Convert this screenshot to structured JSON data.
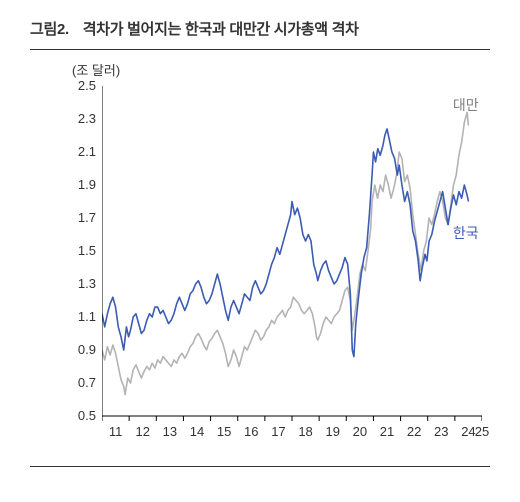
{
  "title_prefix": "그림2.",
  "title": "격차가 벌어지는 한국과 대만간 시가총액 격차",
  "ylabel": "(조 달러)",
  "chart": {
    "type": "line",
    "background_color": "#ffffff",
    "axis_color": "#000000",
    "ylim": [
      0.5,
      2.5
    ],
    "yticks": [
      0.5,
      0.7,
      0.9,
      1.1,
      1.3,
      1.5,
      1.7,
      1.9,
      2.1,
      2.3,
      2.5
    ],
    "xlim": [
      2011,
      2025
    ],
    "xticks": [
      11,
      12,
      13,
      14,
      15,
      16,
      17,
      18,
      19,
      20,
      21,
      22,
      23,
      24,
      25
    ],
    "tick_fontsize": 13,
    "title_fontsize": 15,
    "line_width": 1.6,
    "series": [
      {
        "name": "대만",
        "label": "대만",
        "color": "#b3b3b3",
        "annot": {
          "x": 2024.0,
          "y": 2.4,
          "color": "#808080"
        },
        "data": [
          [
            2011.0,
            0.9
          ],
          [
            2011.1,
            0.84
          ],
          [
            2011.2,
            0.92
          ],
          [
            2011.3,
            0.87
          ],
          [
            2011.4,
            0.93
          ],
          [
            2011.5,
            0.88
          ],
          [
            2011.6,
            0.8
          ],
          [
            2011.7,
            0.72
          ],
          [
            2011.8,
            0.68
          ],
          [
            2011.85,
            0.63
          ],
          [
            2011.95,
            0.73
          ],
          [
            2012.05,
            0.7
          ],
          [
            2012.15,
            0.78
          ],
          [
            2012.25,
            0.81
          ],
          [
            2012.35,
            0.77
          ],
          [
            2012.45,
            0.73
          ],
          [
            2012.55,
            0.77
          ],
          [
            2012.65,
            0.8
          ],
          [
            2012.75,
            0.78
          ],
          [
            2012.85,
            0.82
          ],
          [
            2012.95,
            0.79
          ],
          [
            2013.05,
            0.84
          ],
          [
            2013.15,
            0.82
          ],
          [
            2013.25,
            0.86
          ],
          [
            2013.35,
            0.84
          ],
          [
            2013.45,
            0.82
          ],
          [
            2013.55,
            0.8
          ],
          [
            2013.65,
            0.84
          ],
          [
            2013.75,
            0.82
          ],
          [
            2013.85,
            0.86
          ],
          [
            2013.95,
            0.88
          ],
          [
            2014.05,
            0.85
          ],
          [
            2014.15,
            0.88
          ],
          [
            2014.25,
            0.92
          ],
          [
            2014.35,
            0.94
          ],
          [
            2014.45,
            0.98
          ],
          [
            2014.55,
            1.0
          ],
          [
            2014.65,
            0.97
          ],
          [
            2014.75,
            0.93
          ],
          [
            2014.85,
            0.9
          ],
          [
            2014.95,
            0.95
          ],
          [
            2015.05,
            0.97
          ],
          [
            2015.15,
            1.0
          ],
          [
            2015.25,
            1.02
          ],
          [
            2015.35,
            0.98
          ],
          [
            2015.45,
            0.94
          ],
          [
            2015.55,
            0.88
          ],
          [
            2015.65,
            0.8
          ],
          [
            2015.75,
            0.84
          ],
          [
            2015.85,
            0.9
          ],
          [
            2015.95,
            0.86
          ],
          [
            2016.05,
            0.8
          ],
          [
            2016.15,
            0.86
          ],
          [
            2016.25,
            0.92
          ],
          [
            2016.35,
            0.9
          ],
          [
            2016.45,
            0.94
          ],
          [
            2016.55,
            0.98
          ],
          [
            2016.65,
            1.02
          ],
          [
            2016.75,
            1.0
          ],
          [
            2016.85,
            0.96
          ],
          [
            2016.95,
            0.98
          ],
          [
            2017.05,
            1.02
          ],
          [
            2017.15,
            1.04
          ],
          [
            2017.25,
            1.08
          ],
          [
            2017.35,
            1.06
          ],
          [
            2017.45,
            1.1
          ],
          [
            2017.55,
            1.12
          ],
          [
            2017.65,
            1.14
          ],
          [
            2017.75,
            1.1
          ],
          [
            2017.85,
            1.14
          ],
          [
            2017.95,
            1.16
          ],
          [
            2018.05,
            1.22
          ],
          [
            2018.15,
            1.2
          ],
          [
            2018.25,
            1.18
          ],
          [
            2018.35,
            1.14
          ],
          [
            2018.45,
            1.12
          ],
          [
            2018.55,
            1.14
          ],
          [
            2018.65,
            1.16
          ],
          [
            2018.75,
            1.12
          ],
          [
            2018.85,
            1.04
          ],
          [
            2018.9,
            0.98
          ],
          [
            2018.95,
            0.96
          ],
          [
            2019.05,
            1.0
          ],
          [
            2019.15,
            1.06
          ],
          [
            2019.25,
            1.1
          ],
          [
            2019.35,
            1.08
          ],
          [
            2019.45,
            1.06
          ],
          [
            2019.55,
            1.1
          ],
          [
            2019.65,
            1.12
          ],
          [
            2019.75,
            1.14
          ],
          [
            2019.85,
            1.2
          ],
          [
            2019.95,
            1.26
          ],
          [
            2020.05,
            1.28
          ],
          [
            2020.15,
            1.2
          ],
          [
            2020.22,
            1.02
          ],
          [
            2020.3,
            1.1
          ],
          [
            2020.4,
            1.22
          ],
          [
            2020.5,
            1.36
          ],
          [
            2020.6,
            1.42
          ],
          [
            2020.7,
            1.38
          ],
          [
            2020.8,
            1.5
          ],
          [
            2020.9,
            1.64
          ],
          [
            2020.95,
            1.8
          ],
          [
            2021.05,
            1.9
          ],
          [
            2021.15,
            1.82
          ],
          [
            2021.25,
            1.9
          ],
          [
            2021.35,
            1.86
          ],
          [
            2021.45,
            1.96
          ],
          [
            2021.55,
            1.9
          ],
          [
            2021.65,
            1.82
          ],
          [
            2021.75,
            1.88
          ],
          [
            2021.85,
            1.96
          ],
          [
            2021.95,
            2.1
          ],
          [
            2022.05,
            2.06
          ],
          [
            2022.15,
            1.92
          ],
          [
            2022.25,
            1.96
          ],
          [
            2022.35,
            1.88
          ],
          [
            2022.45,
            1.72
          ],
          [
            2022.55,
            1.6
          ],
          [
            2022.65,
            1.48
          ],
          [
            2022.75,
            1.38
          ],
          [
            2022.85,
            1.5
          ],
          [
            2022.95,
            1.56
          ],
          [
            2023.05,
            1.7
          ],
          [
            2023.15,
            1.66
          ],
          [
            2023.25,
            1.72
          ],
          [
            2023.35,
            1.8
          ],
          [
            2023.45,
            1.86
          ],
          [
            2023.55,
            1.8
          ],
          [
            2023.65,
            1.7
          ],
          [
            2023.75,
            1.66
          ],
          [
            2023.85,
            1.78
          ],
          [
            2023.95,
            1.9
          ],
          [
            2024.05,
            1.96
          ],
          [
            2024.15,
            2.08
          ],
          [
            2024.25,
            2.16
          ],
          [
            2024.35,
            2.28
          ],
          [
            2024.45,
            2.34
          ],
          [
            2024.5,
            2.26
          ]
        ]
      },
      {
        "name": "한국",
        "label": "한국",
        "color": "#3b5bb5",
        "annot": {
          "x": 2024.0,
          "y": 1.62,
          "color": "#3b5bb5"
        },
        "data": [
          [
            2011.0,
            1.12
          ],
          [
            2011.1,
            1.04
          ],
          [
            2011.2,
            1.12
          ],
          [
            2011.3,
            1.18
          ],
          [
            2011.4,
            1.22
          ],
          [
            2011.5,
            1.16
          ],
          [
            2011.6,
            1.04
          ],
          [
            2011.7,
            0.98
          ],
          [
            2011.8,
            0.9
          ],
          [
            2011.9,
            1.04
          ],
          [
            2011.98,
            0.98
          ],
          [
            2012.05,
            1.02
          ],
          [
            2012.15,
            1.1
          ],
          [
            2012.25,
            1.12
          ],
          [
            2012.35,
            1.06
          ],
          [
            2012.45,
            1.0
          ],
          [
            2012.55,
            1.02
          ],
          [
            2012.65,
            1.08
          ],
          [
            2012.75,
            1.12
          ],
          [
            2012.85,
            1.1
          ],
          [
            2012.95,
            1.16
          ],
          [
            2013.05,
            1.16
          ],
          [
            2013.15,
            1.12
          ],
          [
            2013.25,
            1.14
          ],
          [
            2013.35,
            1.1
          ],
          [
            2013.45,
            1.06
          ],
          [
            2013.55,
            1.08
          ],
          [
            2013.65,
            1.12
          ],
          [
            2013.75,
            1.18
          ],
          [
            2013.85,
            1.22
          ],
          [
            2013.95,
            1.18
          ],
          [
            2014.05,
            1.14
          ],
          [
            2014.15,
            1.18
          ],
          [
            2014.25,
            1.24
          ],
          [
            2014.35,
            1.26
          ],
          [
            2014.45,
            1.3
          ],
          [
            2014.55,
            1.32
          ],
          [
            2014.65,
            1.28
          ],
          [
            2014.75,
            1.22
          ],
          [
            2014.85,
            1.18
          ],
          [
            2014.95,
            1.2
          ],
          [
            2015.05,
            1.24
          ],
          [
            2015.15,
            1.3
          ],
          [
            2015.25,
            1.36
          ],
          [
            2015.35,
            1.3
          ],
          [
            2015.45,
            1.22
          ],
          [
            2015.55,
            1.14
          ],
          [
            2015.65,
            1.08
          ],
          [
            2015.75,
            1.16
          ],
          [
            2015.85,
            1.2
          ],
          [
            2015.95,
            1.16
          ],
          [
            2016.05,
            1.12
          ],
          [
            2016.15,
            1.18
          ],
          [
            2016.25,
            1.24
          ],
          [
            2016.35,
            1.22
          ],
          [
            2016.45,
            1.2
          ],
          [
            2016.55,
            1.28
          ],
          [
            2016.65,
            1.32
          ],
          [
            2016.75,
            1.28
          ],
          [
            2016.85,
            1.24
          ],
          [
            2016.95,
            1.26
          ],
          [
            2017.05,
            1.3
          ],
          [
            2017.15,
            1.36
          ],
          [
            2017.25,
            1.42
          ],
          [
            2017.35,
            1.46
          ],
          [
            2017.45,
            1.52
          ],
          [
            2017.55,
            1.48
          ],
          [
            2017.65,
            1.54
          ],
          [
            2017.75,
            1.6
          ],
          [
            2017.85,
            1.66
          ],
          [
            2017.95,
            1.72
          ],
          [
            2018.0,
            1.8
          ],
          [
            2018.1,
            1.72
          ],
          [
            2018.2,
            1.76
          ],
          [
            2018.3,
            1.7
          ],
          [
            2018.4,
            1.6
          ],
          [
            2018.5,
            1.56
          ],
          [
            2018.6,
            1.6
          ],
          [
            2018.7,
            1.56
          ],
          [
            2018.8,
            1.42
          ],
          [
            2018.9,
            1.36
          ],
          [
            2018.95,
            1.32
          ],
          [
            2019.05,
            1.38
          ],
          [
            2019.15,
            1.42
          ],
          [
            2019.25,
            1.44
          ],
          [
            2019.35,
            1.38
          ],
          [
            2019.45,
            1.34
          ],
          [
            2019.55,
            1.3
          ],
          [
            2019.65,
            1.32
          ],
          [
            2019.75,
            1.36
          ],
          [
            2019.85,
            1.4
          ],
          [
            2019.95,
            1.46
          ],
          [
            2020.05,
            1.42
          ],
          [
            2020.15,
            1.24
          ],
          [
            2020.22,
            0.9
          ],
          [
            2020.28,
            0.86
          ],
          [
            2020.35,
            1.06
          ],
          [
            2020.45,
            1.22
          ],
          [
            2020.55,
            1.36
          ],
          [
            2020.65,
            1.46
          ],
          [
            2020.75,
            1.52
          ],
          [
            2020.85,
            1.72
          ],
          [
            2020.95,
            1.96
          ],
          [
            2021.0,
            2.1
          ],
          [
            2021.08,
            2.04
          ],
          [
            2021.16,
            2.12
          ],
          [
            2021.25,
            2.08
          ],
          [
            2021.35,
            2.14
          ],
          [
            2021.42,
            2.2
          ],
          [
            2021.5,
            2.24
          ],
          [
            2021.58,
            2.18
          ],
          [
            2021.68,
            2.1
          ],
          [
            2021.78,
            2.06
          ],
          [
            2021.88,
            1.96
          ],
          [
            2021.95,
            2.02
          ],
          [
            2022.05,
            1.9
          ],
          [
            2022.15,
            1.8
          ],
          [
            2022.25,
            1.86
          ],
          [
            2022.35,
            1.78
          ],
          [
            2022.45,
            1.62
          ],
          [
            2022.55,
            1.56
          ],
          [
            2022.65,
            1.44
          ],
          [
            2022.72,
            1.32
          ],
          [
            2022.8,
            1.4
          ],
          [
            2022.9,
            1.48
          ],
          [
            2022.97,
            1.44
          ],
          [
            2023.05,
            1.56
          ],
          [
            2023.15,
            1.6
          ],
          [
            2023.25,
            1.68
          ],
          [
            2023.35,
            1.74
          ],
          [
            2023.45,
            1.8
          ],
          [
            2023.55,
            1.86
          ],
          [
            2023.65,
            1.76
          ],
          [
            2023.75,
            1.66
          ],
          [
            2023.85,
            1.76
          ],
          [
            2023.95,
            1.84
          ],
          [
            2024.05,
            1.78
          ],
          [
            2024.15,
            1.86
          ],
          [
            2024.25,
            1.82
          ],
          [
            2024.35,
            1.9
          ],
          [
            2024.45,
            1.84
          ],
          [
            2024.5,
            1.8
          ]
        ]
      }
    ]
  }
}
